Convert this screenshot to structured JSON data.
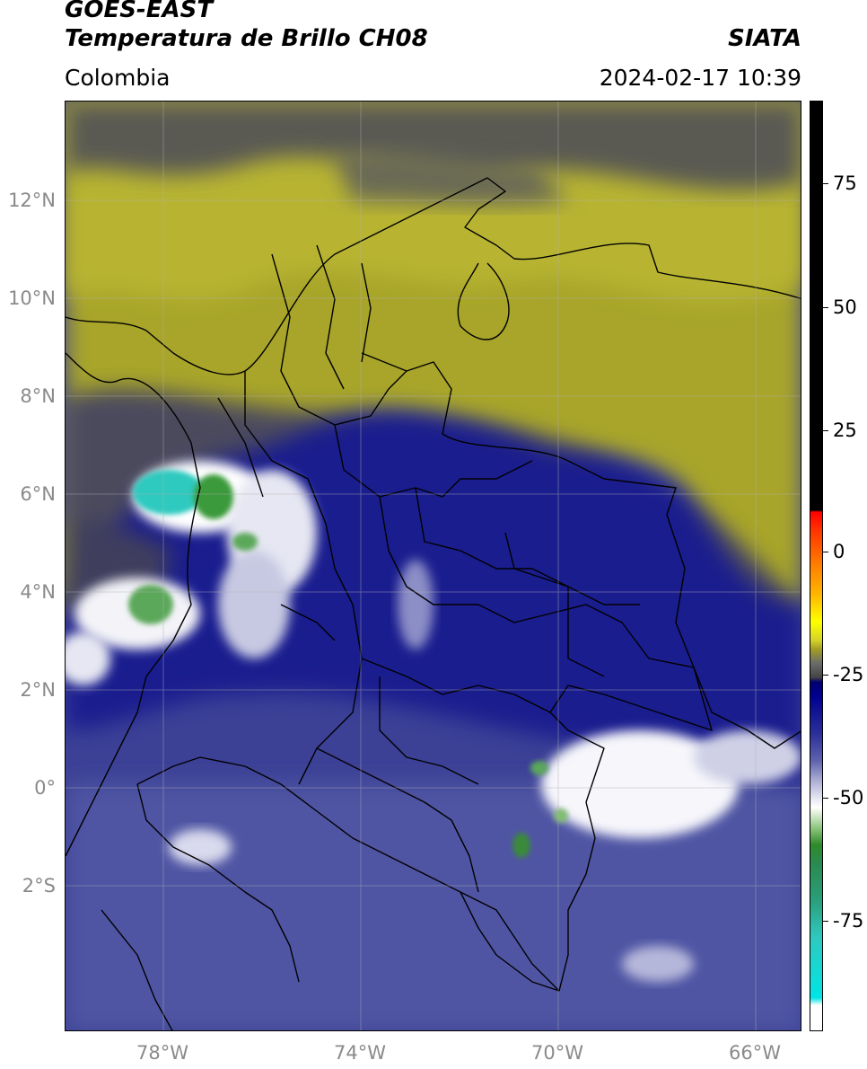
{
  "header": {
    "title_line1": "GOES-EAST",
    "title_line2": "Temperatura de Brillo CH08",
    "region": "Colombia",
    "organization": "SIATA",
    "datetime": "2024-02-17 10:39"
  },
  "map": {
    "lat_labels": [
      "12°N",
      "10°N",
      "8°N",
      "6°N",
      "4°N",
      "2°N",
      "0°",
      "2°S"
    ],
    "lon_labels": [
      "78°W",
      "74°W",
      "70°W",
      "66°W"
    ],
    "extent": {
      "lon_min": -79.9,
      "lon_max": -65.0,
      "lat_min": -5.2,
      "lat_max": 13.9
    }
  },
  "colorbar": {
    "tick_labels": [
      "75",
      "50",
      "25",
      "0",
      "-25",
      "-50",
      "-75"
    ],
    "colors": {
      "cold_clouds": "#ffffff",
      "deep_convection": "#2f8a2b",
      "very_cold": "#2fc9bf",
      "moist_mid_level": "#000090",
      "dry_mid_level": "#c0bc2a",
      "warm": "#000000",
      "hot_extreme": "#ff0000"
    }
  }
}
